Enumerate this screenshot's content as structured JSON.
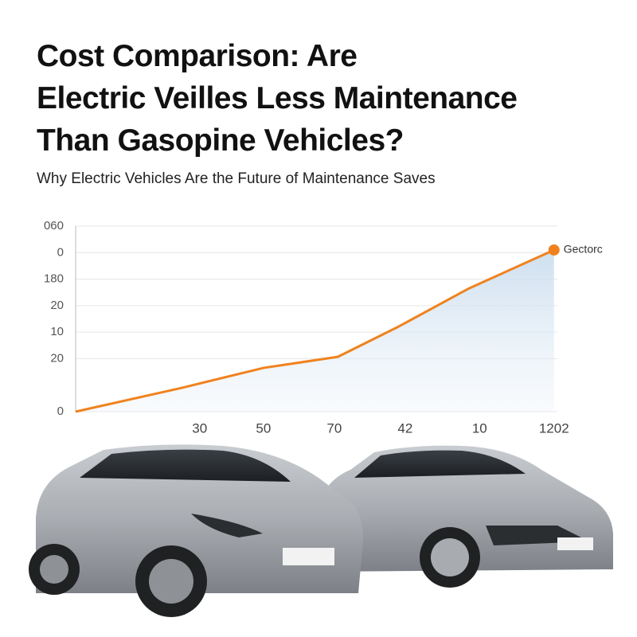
{
  "chart_data": {
    "type": "line",
    "title": [
      "Cost Comparison: Are",
      "Electric Veilles Less Maintenance",
      "Than Gasopine Vehicles?"
    ],
    "subtitle": "Why Electric Vehicles Are the Future of Maintenance Saves",
    "x": [
      0,
      1.5,
      2.65,
      3.7,
      4.55,
      5.55,
      6.75
    ],
    "series": [
      {
        "name": "Gectorc",
        "color": "#f0821e",
        "values": [
          0,
          0.9,
          1.65,
          2.07,
          3.2,
          4.65,
          6.1
        ]
      }
    ],
    "xlim": [
      0,
      7
    ],
    "xticks": [
      {
        "value": 1.75,
        "label": "30"
      },
      {
        "value": 2.65,
        "label": "50"
      },
      {
        "value": 3.65,
        "label": "70"
      },
      {
        "value": 4.65,
        "label": "42"
      },
      {
        "value": 5.7,
        "label": "10"
      },
      {
        "value": 6.75,
        "label": "1202"
      }
    ],
    "ylim": [
      0,
      7
    ],
    "yticks": [
      0,
      {
        "value": 2,
        "label": "20"
      },
      {
        "value": 3,
        "label": "10"
      },
      {
        "value": 4,
        "label": "20"
      },
      {
        "value": 5,
        "label": "180"
      },
      {
        "value": 6,
        "label": "0"
      },
      {
        "value": 7,
        "label": "060"
      }
    ],
    "grid": true
  }
}
